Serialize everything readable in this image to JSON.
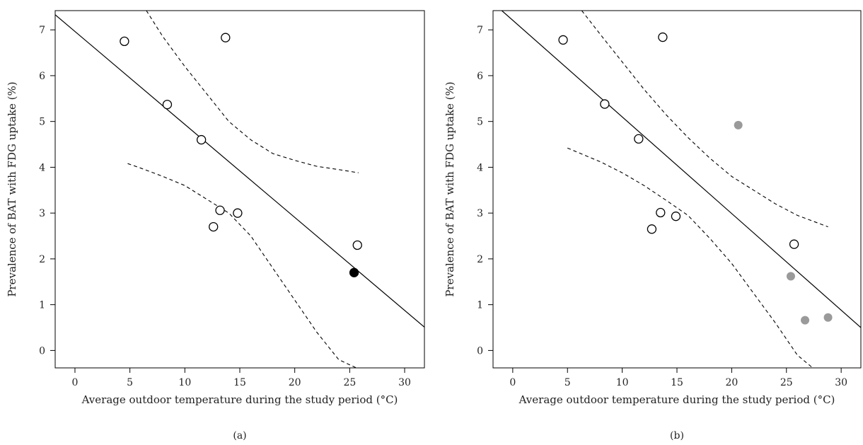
{
  "chart_data": [
    {
      "type": "scatter",
      "panel_label": "(a)",
      "xlabel": "Average outdoor temperature during the study period (°C)",
      "ylabel": "Prevalence of BAT with FDG uptake (%)",
      "xlim": [
        -1.8,
        31.8
      ],
      "ylim": [
        -0.38,
        7.42
      ],
      "xticks": [
        0,
        5,
        10,
        15,
        20,
        25,
        30
      ],
      "yticks": [
        0,
        1,
        2,
        3,
        4,
        5,
        6,
        7
      ],
      "grid": false,
      "series": [
        {
          "style": "open",
          "x": [
            4.5,
            8.4,
            11.5,
            13.2,
            13.7,
            12.6,
            14.8,
            25.7
          ],
          "y": [
            6.75,
            5.37,
            4.6,
            3.06,
            6.83,
            2.7,
            3.0,
            2.3
          ]
        },
        {
          "style": "filled-black",
          "x": [
            25.4
          ],
          "y": [
            1.7
          ]
        }
      ],
      "fit_line": {
        "x": [
          -1.8,
          31.8
        ],
        "y": [
          7.33,
          0.51
        ]
      },
      "ci_upper": {
        "x": [
          6.5,
          8,
          10,
          12,
          14,
          16,
          18,
          20,
          22,
          24,
          25.8
        ],
        "y": [
          7.42,
          6.85,
          6.2,
          5.6,
          5.0,
          4.6,
          4.3,
          4.15,
          4.02,
          3.95,
          3.88
        ]
      },
      "ci_lower": {
        "x": [
          4.8,
          6,
          8,
          10,
          12,
          14,
          16,
          18,
          20,
          22,
          24,
          25.6
        ],
        "y": [
          4.08,
          3.98,
          3.8,
          3.6,
          3.3,
          3.0,
          2.5,
          1.8,
          1.1,
          0.4,
          -0.2,
          -0.38
        ]
      }
    },
    {
      "type": "scatter",
      "panel_label": "(b)",
      "xlabel": "Average outdoor temperature during the study period (°C)",
      "ylabel": "Prevalence of BAT with FDG uptake (%)",
      "xlim": [
        -1.8,
        31.8
      ],
      "ylim": [
        -0.38,
        7.42
      ],
      "xticks": [
        0,
        5,
        10,
        15,
        20,
        25,
        30
      ],
      "yticks": [
        0,
        1,
        2,
        3,
        4,
        5,
        6,
        7
      ],
      "grid": false,
      "series": [
        {
          "style": "open",
          "x": [
            4.6,
            8.4,
            11.5,
            13.5,
            13.7,
            12.7,
            14.9,
            25.7
          ],
          "y": [
            6.78,
            5.38,
            4.62,
            3.01,
            6.84,
            2.65,
            2.93,
            2.32
          ]
        },
        {
          "style": "filled-gray",
          "x": [
            20.6,
            25.4,
            26.7,
            28.8
          ],
          "y": [
            4.92,
            1.62,
            0.66,
            0.72
          ]
        }
      ],
      "fit_line": {
        "x": [
          -1.0,
          31.8
        ],
        "y": [
          7.42,
          0.5
        ]
      },
      "ci_upper": {
        "x": [
          6.3,
          8,
          10,
          12,
          14,
          16,
          18,
          20,
          22,
          24,
          26,
          28.8
        ],
        "y": [
          7.42,
          6.9,
          6.3,
          5.7,
          5.15,
          4.65,
          4.2,
          3.8,
          3.5,
          3.2,
          2.95,
          2.7
        ]
      },
      "ci_lower": {
        "x": [
          5.0,
          6,
          8,
          10,
          12,
          14,
          16,
          18,
          20,
          22,
          24,
          26,
          27.4,
          28.3
        ],
        "y": [
          4.42,
          4.32,
          4.12,
          3.88,
          3.6,
          3.28,
          2.95,
          2.45,
          1.9,
          1.25,
          0.6,
          -0.1,
          -0.38,
          -0.38
        ]
      }
    }
  ],
  "colors": {
    "open_marker_fill": "#ffffff",
    "marker_stroke": "#000000",
    "filled_black": "#000000",
    "filled_gray": "#9a9a9a"
  }
}
